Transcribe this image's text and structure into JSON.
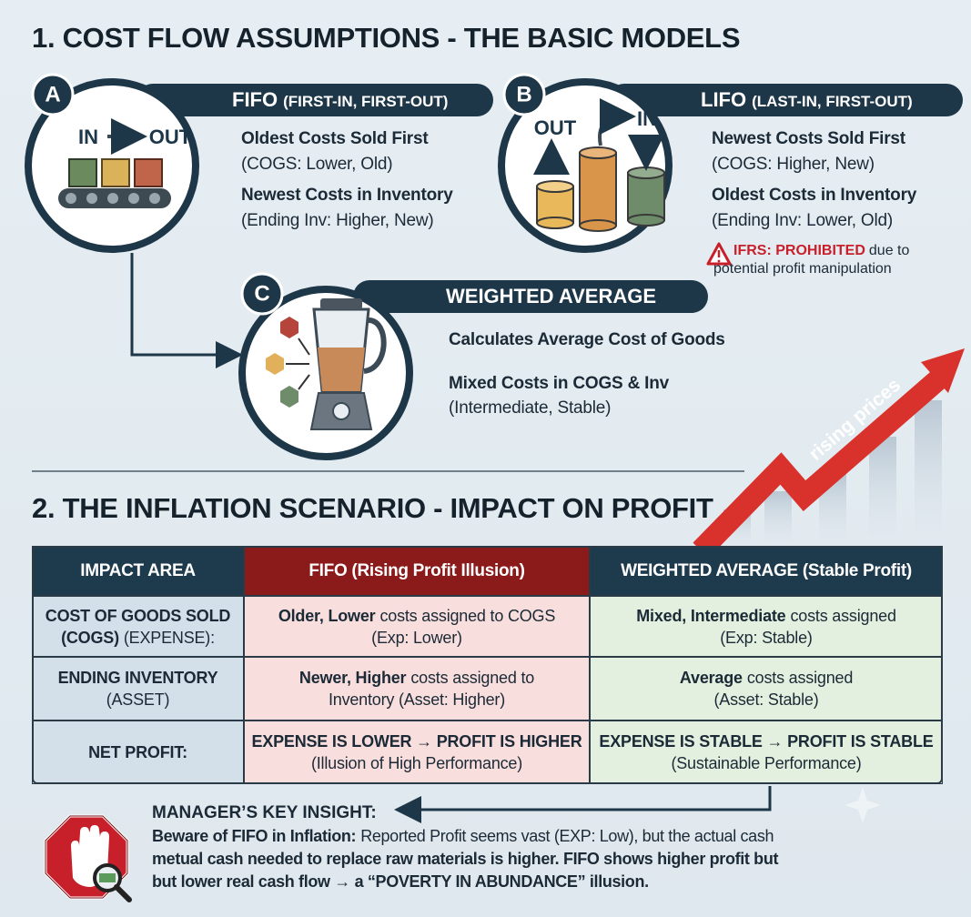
{
  "title": "1. COST FLOW ASSUMPTIONS - THE BASIC MODELS",
  "models": [
    {
      "badge": "A",
      "name": "FIFO",
      "full_name": "(FIRST-IN, FIRST-OUT)",
      "icon_labels": [
        "IN",
        "OUT"
      ],
      "lines": [
        {
          "bold": "Oldest Costs Sold First"
        },
        {
          "text": "(COGS: Lower, Old)"
        },
        {
          "bold": "Newest Costs in Inventory"
        },
        {
          "text": "(Ending Inv: Higher, New)"
        }
      ]
    },
    {
      "badge": "B",
      "name": "LIFO",
      "full_name": "(LAST-IN, FIRST-OUT)",
      "icon_labels": [
        "OUT",
        "IN"
      ],
      "lines": [
        {
          "bold": "Newest Costs Sold First"
        },
        {
          "text": "(COGS: Higher, New)"
        },
        {
          "bold": "Oldest Costs in Inventory"
        },
        {
          "text": "(Ending Inv: Lower, Old)"
        }
      ],
      "warning": {
        "label": "IFRS: PROHIBITED",
        "text": "due to",
        "text2": "potential profit manipulation"
      }
    },
    {
      "badge": "C",
      "name": "WEIGHTED AVERAGE",
      "lines": [
        {
          "bold": "Calculates Average Cost of Goods"
        },
        {
          "bold": "Mixed Costs in COGS & Inv"
        },
        {
          "text": "(Intermediate, Stable)"
        }
      ]
    }
  ],
  "trend_label": "rising prices",
  "section2_title": "2. THE INFLATION SCENARIO - IMPACT ON PROFIT",
  "table": {
    "header": [
      "IMPACT AREA",
      "FIFO (Rising Profit Illusion)",
      "WEIGHTED AVERAGE (Stable Profit)"
    ],
    "rows": [
      [
        [
          {
            "bold": "COST OF GOODS SOLD"
          },
          {
            "bold": "(COGS)",
            "text": "(EXPENSE):"
          }
        ],
        [
          {
            "bold": "Older, Lower",
            "text": "costs assigned to COGS"
          },
          {
            "text": "(Exp: Lower)"
          }
        ],
        [
          {
            "bold": "Mixed, Intermediate",
            "text": "costs assigned"
          },
          {
            "text": "(Exp: Stable)"
          }
        ]
      ],
      [
        [
          {
            "bold": "ENDING INVENTORY"
          },
          {
            "text": "(ASSET)"
          }
        ],
        [
          {
            "bold": "Newer, Higher",
            "text": "costs assigned to"
          },
          {
            "text": "Inventory (Asset: Higher)"
          }
        ],
        [
          {
            "bold": "Average",
            "text": "costs assigned"
          },
          {
            "text": "(Asset: Stable)"
          }
        ]
      ],
      [
        [
          {
            "bold": "NET PROFIT:"
          }
        ],
        [
          {
            "bold": "EXPENSE IS LOWER → PROFIT IS HIGHER"
          },
          {
            "text": "(Illusion of High Performance)"
          }
        ],
        [
          {
            "bold": "EXPENSE IS STABLE → PROFIT IS STABLE"
          },
          {
            "text": "(Sustainable Performance)"
          }
        ]
      ]
    ]
  },
  "insight": {
    "heading": "MANAGER’S KEY INSIGHT:",
    "lines": [
      {
        "bold": "Beware of FIFO in Inflation:",
        "text": "Reported Profit seems vast (EXP: Low), but the actual cash"
      },
      {
        "bold": "metual cash needed to replace raw materials is higher. FIFO shows higher profit but"
      },
      {
        "bold": "but lower real cash flow → a “POVERTY IN ABUNDANCE” illusion."
      }
    ]
  }
}
